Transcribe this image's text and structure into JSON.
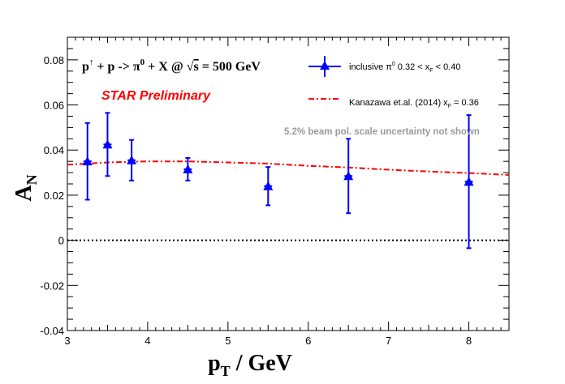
{
  "chart_data": {
    "type": "scatter",
    "xlabel_main": "p",
    "xlabel_sub": "T",
    "xlabel_rest": " / GeV",
    "ylabel_main": "A",
    "ylabel_sub": "N",
    "xlim": [
      3,
      8.5
    ],
    "ylim": [
      -0.04,
      0.09
    ],
    "x_ticks": [
      "3",
      "4",
      "5",
      "6",
      "7",
      "8"
    ],
    "x_tick_values": [
      3,
      4,
      5,
      6,
      7,
      8
    ],
    "y_ticks": [
      "-0.04",
      "-0.02",
      "0",
      "0.02",
      "0.04",
      "0.06",
      "0.08"
    ],
    "y_tick_values": [
      -0.04,
      -0.02,
      0,
      0.02,
      0.04,
      0.06,
      0.08
    ],
    "reaction": {
      "p_up": "p",
      "arrow": "↑",
      "plus1": " + p ->  π",
      "zero": "0",
      "rest": " + X @  ",
      "sqrt": "√",
      "s": "s",
      "energy": " = 500 GeV"
    },
    "preliminary_label": "STAR Preliminary",
    "note": "5.2% beam pol. scale uncertainty not shown",
    "series": [
      {
        "legend": {
          "prefix": "inclusive π",
          "sup": "0",
          "mid": " 0.32 < x",
          "sub": "F",
          "suffix": " < 0.40"
        },
        "color": "#0000ff",
        "x": [
          3.25,
          3.5,
          3.8,
          4.5,
          5.5,
          6.5,
          8.0
        ],
        "y": [
          0.035,
          0.0425,
          0.0355,
          0.0315,
          0.024,
          0.0285,
          0.026
        ],
        "yerr": [
          0.017,
          0.014,
          0.009,
          0.005,
          0.0085,
          0.0165,
          0.0295
        ],
        "xerr": [
          0.05,
          0.05,
          0.05,
          0.05,
          0.05,
          0.05,
          0.05
        ]
      },
      {
        "legend": {
          "prefix": "Kanazawa et.al. (2014) x",
          "sub": "F",
          "suffix": " = 0.36"
        },
        "color": "#ff0000",
        "style": "dash-dot",
        "x": [
          3.0,
          3.5,
          4.0,
          4.5,
          5.0,
          5.5,
          6.0,
          6.5,
          7.0,
          7.5,
          8.0,
          8.5
        ],
        "y": [
          0.0335,
          0.0345,
          0.035,
          0.035,
          0.0345,
          0.034,
          0.033,
          0.0323,
          0.0313,
          0.0305,
          0.0298,
          0.029
        ]
      }
    ],
    "reference_line": {
      "y": 0,
      "style": "dotted",
      "color": "#000000"
    }
  }
}
